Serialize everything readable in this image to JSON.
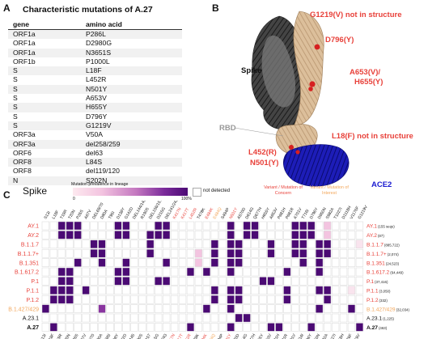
{
  "panelA": {
    "letter": "A",
    "title": "Characteristic mutations of A.27",
    "headers": [
      "gene",
      "amino acid"
    ],
    "rows": [
      [
        "ORF1a",
        "P286L"
      ],
      [
        "ORF1a",
        "D2980G"
      ],
      [
        "ORF1a",
        "N3651S"
      ],
      [
        "ORF1b",
        "P1000L"
      ],
      [
        "S",
        "L18F"
      ],
      [
        "S",
        "L452R"
      ],
      [
        "S",
        "N501Y"
      ],
      [
        "S",
        "A653V"
      ],
      [
        "S",
        "H655Y"
      ],
      [
        "S",
        "D796Y"
      ],
      [
        "S",
        "G1219V"
      ],
      [
        "ORF3a",
        "V50A"
      ],
      [
        "ORF3a",
        "del258/259"
      ],
      [
        "ORF6",
        "del63"
      ],
      [
        "ORF8",
        "L84S"
      ],
      [
        "ORF8",
        "del119/120"
      ],
      [
        "N",
        "S202N"
      ]
    ]
  },
  "panelB": {
    "letter": "B",
    "labels": {
      "g1219": "G1219(V) not in structure",
      "d796": "D796(Y)",
      "spike": "Spike",
      "a653": "A653(V)/",
      "h655": "H655(Y)",
      "rbd": "RBD",
      "l18": "L18(F) not in structure",
      "l452": "L452(R)",
      "n501": "N501(Y)",
      "ace2": "ACE2"
    }
  },
  "panelC": {
    "letter": "C",
    "title": "Spike",
    "legend": {
      "title": "Mutation prevalence in lineage",
      "min": "0",
      "max": "100%",
      "not_detected": "not detected",
      "voc": "Variant / Mutation of Concern",
      "voi": "Variant / Mutation of Interest"
    },
    "colors": {
      "red": "#e8413a",
      "orange": "#f2a65a",
      "dark": "#4b0a74",
      "mid": "#8a35a0",
      "light": "#f3c4e0",
      "faint": "#f9e4ee",
      "nd": "#ffffff"
    },
    "mutations": [
      "S13I",
      "L18F",
      "T19R",
      "T20N",
      "P26S",
      "A67V",
      "DEL69/70",
      "D80A",
      "T95I",
      "D138Y",
      "G142D",
      "DEL144/145",
      "R190S",
      "DEL156/157",
      "D215G",
      "DEL241/243",
      "K417N",
      "K417T",
      "L452R",
      "T478K",
      "E484K",
      "E484Q",
      "S494P",
      "N501Y",
      "A570D",
      "D614G",
      "Q677H",
      "H655Y",
      "A653V",
      "P681H",
      "P681R",
      "A701V",
      "T716I",
      "D796Y",
      "D950N",
      "S982A",
      "T1027I",
      "D1118H",
      "V1176F",
      "G1219V"
    ],
    "mutation_colors": [
      "#111",
      "#111",
      "#111",
      "#111",
      "#111",
      "#111",
      "#111",
      "#111",
      "#111",
      "#111",
      "#111",
      "#111",
      "#111",
      "#111",
      "#111",
      "#111",
      "#e8413a",
      "#e8413a",
      "#e8413a",
      "#111",
      "#e8413a",
      "#f2a65a",
      "#111",
      "#e8413a",
      "#111",
      "#111",
      "#111",
      "#111",
      "#111",
      "#111",
      "#111",
      "#111",
      "#111",
      "#111",
      "#111",
      "#111",
      "#111",
      "#111",
      "#111",
      "#111"
    ],
    "lineages": [
      {
        "name": "AY.1",
        "count": "(155 seqs)",
        "color": "#e8413a",
        "bold": false
      },
      {
        "name": "AY.2",
        "count": "(87)",
        "color": "#e8413a",
        "bold": false
      },
      {
        "name": "B.1.1.7",
        "count": "(885,722)",
        "color": "#e8413a",
        "bold": false
      },
      {
        "name": "B.1.1.7+",
        "count": "(2,074)",
        "color": "#e8413a",
        "bold": false
      },
      {
        "name": "B.1.351",
        "count": "(24,523)",
        "color": "#e8413a",
        "bold": false
      },
      {
        "name": "B.1.617.2",
        "count": "(64,449)",
        "color": "#e8413a",
        "bold": false
      },
      {
        "name": "P.1",
        "count": "(37,416)",
        "color": "#e8413a",
        "bold": false
      },
      {
        "name": "P.1.1",
        "count": "(3,050)",
        "color": "#e8413a",
        "bold": false
      },
      {
        "name": "P.1.2",
        "count": "(332)",
        "color": "#e8413a",
        "bold": false
      },
      {
        "name": "B.1.427/429",
        "count": "(32,034)",
        "color": "#f2a65a",
        "bold": false
      },
      {
        "name": "A.23.1",
        "count": "(1,225)",
        "color": "#111",
        "bold": false
      },
      {
        "name": "A.27",
        "count": "(463)",
        "color": "#111",
        "bold": true
      }
    ],
    "grid": [
      "..ddd....dd...dd.......d.dd....ddd.l....",
      "..ddd....dd..ddd.......d.dd....ddd.l....",
      "......dd.....d.......d.dd...d..dd.dd...f",
      "......dd.....d.....l.d.dd...d..dd.dd....",
      "....d..d..d....d...l.d.dd.......d.d.....",
      "..dd.....dd.......d.d..d......d...d.....",
      "..dd.....dd...dd...........dd...........",
      ".ddd.d...............d.dd.....d...dd..f.",
      ".ddd.................d.dd.....d....d....",
      "d......m............d..d..........d...d.",
      "........................dd..............",
      ".d................d....d....dd...d.....d"
    ]
  }
}
